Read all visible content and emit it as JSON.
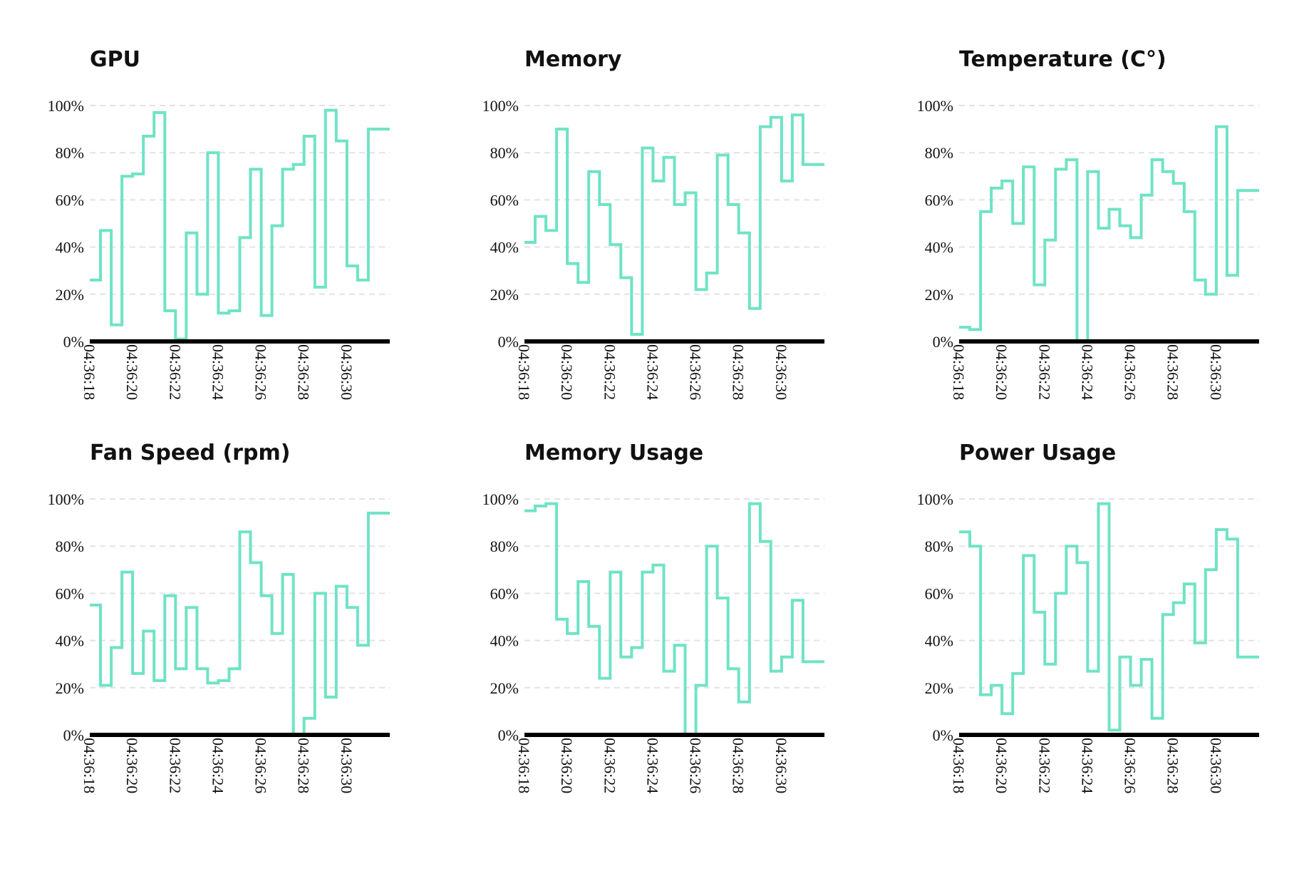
{
  "series_color": "#6fe3c5",
  "chart_data": [
    {
      "type": "line",
      "title": "GPU",
      "step": true,
      "x": [
        "04:36:18",
        "04:36:18.5",
        "04:36:19",
        "04:36:19.5",
        "04:36:20",
        "04:36:20.5",
        "04:36:21",
        "04:36:21.5",
        "04:36:22",
        "04:36:22.5",
        "04:36:23",
        "04:36:23.5",
        "04:36:24",
        "04:36:24.5",
        "04:36:25",
        "04:36:25.5",
        "04:36:26",
        "04:36:26.5",
        "04:36:27",
        "04:36:27.5",
        "04:36:28",
        "04:36:28.5",
        "04:36:29",
        "04:36:29.5",
        "04:36:30",
        "04:36:30.5",
        "04:36:31",
        "04:36:31.5"
      ],
      "y": [
        26,
        47,
        7,
        70,
        71,
        87,
        97,
        13,
        1,
        46,
        20,
        80,
        12,
        13,
        44,
        73,
        11,
        49,
        73,
        75,
        87,
        23,
        98,
        85,
        32,
        26,
        90,
        90
      ],
      "ylim": [
        0,
        100
      ],
      "yticks": [
        "0%",
        "20%",
        "40%",
        "60%",
        "80%",
        "100%"
      ],
      "xticks": [
        "04:36:18",
        "04:36:20",
        "04:36:22",
        "04:36:24",
        "04:36:26",
        "04:36:28",
        "04:36:30"
      ],
      "grid": true
    },
    {
      "type": "line",
      "title": "Memory",
      "step": true,
      "x": [
        "04:36:18",
        "04:36:18.5",
        "04:36:19",
        "04:36:19.5",
        "04:36:20",
        "04:36:20.5",
        "04:36:21",
        "04:36:21.5",
        "04:36:22",
        "04:36:22.5",
        "04:36:23",
        "04:36:23.5",
        "04:36:24",
        "04:36:24.5",
        "04:36:25",
        "04:36:25.5",
        "04:36:26",
        "04:36:26.5",
        "04:36:27",
        "04:36:27.5",
        "04:36:28",
        "04:36:28.5",
        "04:36:29",
        "04:36:29.5",
        "04:36:30",
        "04:36:30.5",
        "04:36:31",
        "04:36:31.5"
      ],
      "y": [
        42,
        53,
        47,
        90,
        33,
        25,
        72,
        58,
        41,
        27,
        3,
        82,
        68,
        78,
        58,
        63,
        22,
        29,
        79,
        58,
        46,
        14,
        91,
        95,
        68,
        96,
        75,
        75
      ],
      "ylim": [
        0,
        100
      ],
      "yticks": [
        "0%",
        "20%",
        "40%",
        "60%",
        "80%",
        "100%"
      ],
      "xticks": [
        "04:36:18",
        "04:36:20",
        "04:36:22",
        "04:36:24",
        "04:36:26",
        "04:36:28",
        "04:36:30"
      ],
      "grid": true
    },
    {
      "type": "line",
      "title": "Temperature (C°)",
      "step": true,
      "x": [
        "04:36:18",
        "04:36:18.5",
        "04:36:19",
        "04:36:19.5",
        "04:36:20",
        "04:36:20.5",
        "04:36:21",
        "04:36:21.5",
        "04:36:22",
        "04:36:22.5",
        "04:36:23",
        "04:36:23.5",
        "04:36:24",
        "04:36:24.5",
        "04:36:25",
        "04:36:25.5",
        "04:36:26",
        "04:36:26.5",
        "04:36:27",
        "04:36:27.5",
        "04:36:28",
        "04:36:28.5",
        "04:36:29",
        "04:36:29.5",
        "04:36:30",
        "04:36:30.5",
        "04:36:31",
        "04:36:31.5"
      ],
      "y": [
        6,
        5,
        55,
        65,
        68,
        50,
        74,
        24,
        43,
        73,
        77,
        0,
        72,
        48,
        56,
        49,
        44,
        62,
        77,
        72,
        67,
        55,
        26,
        20,
        91,
        28,
        64,
        64
      ],
      "ylim": [
        0,
        100
      ],
      "yticks": [
        "0%",
        "20%",
        "40%",
        "60%",
        "80%",
        "100%"
      ],
      "xticks": [
        "04:36:18",
        "04:36:20",
        "04:36:22",
        "04:36:24",
        "04:36:26",
        "04:36:28",
        "04:36:30"
      ],
      "grid": true
    },
    {
      "type": "line",
      "title": "Fan Speed (rpm)",
      "step": true,
      "x": [
        "04:36:18",
        "04:36:18.5",
        "04:36:19",
        "04:36:19.5",
        "04:36:20",
        "04:36:20.5",
        "04:36:21",
        "04:36:21.5",
        "04:36:22",
        "04:36:22.5",
        "04:36:23",
        "04:36:23.5",
        "04:36:24",
        "04:36:24.5",
        "04:36:25",
        "04:36:25.5",
        "04:36:26",
        "04:36:26.5",
        "04:36:27",
        "04:36:27.5",
        "04:36:28",
        "04:36:28.5",
        "04:36:29",
        "04:36:29.5",
        "04:36:30",
        "04:36:30.5",
        "04:36:31",
        "04:36:31.5"
      ],
      "y": [
        55,
        21,
        37,
        69,
        26,
        44,
        23,
        59,
        28,
        54,
        28,
        22,
        23,
        28,
        86,
        73,
        59,
        43,
        68,
        0,
        7,
        60,
        16,
        63,
        54,
        38,
        94,
        94
      ],
      "ylim": [
        0,
        100
      ],
      "yticks": [
        "0%",
        "20%",
        "40%",
        "60%",
        "80%",
        "100%"
      ],
      "xticks": [
        "04:36:18",
        "04:36:20",
        "04:36:22",
        "04:36:24",
        "04:36:26",
        "04:36:28",
        "04:36:30"
      ],
      "grid": true
    },
    {
      "type": "line",
      "title": "Memory Usage",
      "step": true,
      "x": [
        "04:36:18",
        "04:36:18.5",
        "04:36:19",
        "04:36:19.5",
        "04:36:20",
        "04:36:20.5",
        "04:36:21",
        "04:36:21.5",
        "04:36:22",
        "04:36:22.5",
        "04:36:23",
        "04:36:23.5",
        "04:36:24",
        "04:36:24.5",
        "04:36:25",
        "04:36:25.5",
        "04:36:26",
        "04:36:26.5",
        "04:36:27",
        "04:36:27.5",
        "04:36:28",
        "04:36:28.5",
        "04:36:29",
        "04:36:29.5",
        "04:36:30",
        "04:36:30.5",
        "04:36:31",
        "04:36:31.5"
      ],
      "y": [
        95,
        97,
        98,
        49,
        43,
        65,
        46,
        24,
        69,
        33,
        37,
        69,
        72,
        27,
        38,
        0,
        21,
        80,
        58,
        28,
        14,
        98,
        82,
        27,
        33,
        57,
        31,
        31
      ],
      "ylim": [
        0,
        100
      ],
      "yticks": [
        "0%",
        "20%",
        "40%",
        "60%",
        "80%",
        "100%"
      ],
      "xticks": [
        "04:36:18",
        "04:36:20",
        "04:36:22",
        "04:36:24",
        "04:36:26",
        "04:36:28",
        "04:36:30"
      ],
      "grid": true
    },
    {
      "type": "line",
      "title": "Power Usage",
      "step": true,
      "x": [
        "04:36:18",
        "04:36:18.5",
        "04:36:19",
        "04:36:19.5",
        "04:36:20",
        "04:36:20.5",
        "04:36:21",
        "04:36:21.5",
        "04:36:22",
        "04:36:22.5",
        "04:36:23",
        "04:36:23.5",
        "04:36:24",
        "04:36:24.5",
        "04:36:25",
        "04:36:25.5",
        "04:36:26",
        "04:36:26.5",
        "04:36:27",
        "04:36:27.5",
        "04:36:28",
        "04:36:28.5",
        "04:36:29",
        "04:36:29.5",
        "04:36:30",
        "04:36:30.5",
        "04:36:31",
        "04:36:31.5"
      ],
      "y": [
        86,
        80,
        17,
        21,
        9,
        26,
        76,
        52,
        30,
        60,
        80,
        73,
        27,
        98,
        2,
        33,
        21,
        32,
        7,
        51,
        56,
        64,
        39,
        70,
        87,
        83,
        33,
        33
      ],
      "ylim": [
        0,
        100
      ],
      "yticks": [
        "0%",
        "20%",
        "40%",
        "60%",
        "80%",
        "100%"
      ],
      "xticks": [
        "04:36:18",
        "04:36:20",
        "04:36:22",
        "04:36:24",
        "04:36:26",
        "04:36:28",
        "04:36:30"
      ],
      "grid": true
    }
  ]
}
